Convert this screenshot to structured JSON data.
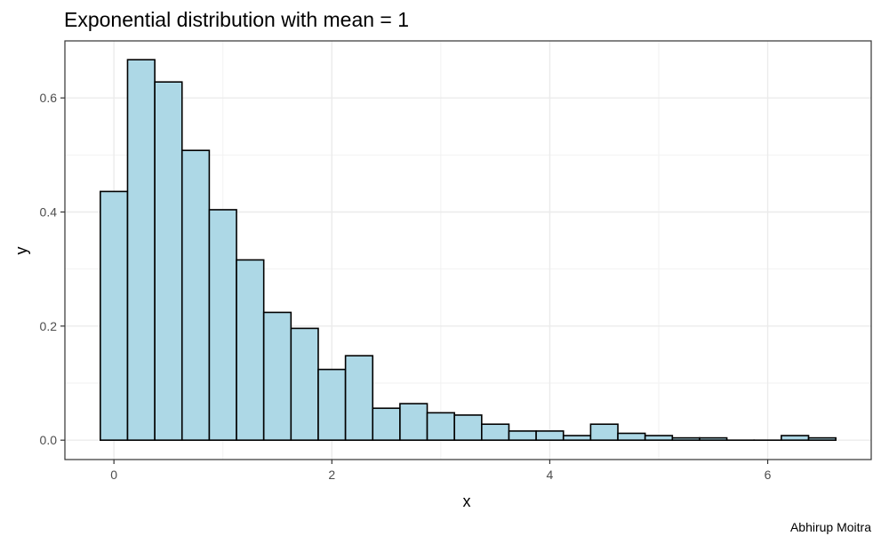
{
  "chart_data": {
    "type": "bar",
    "title": "Exponential distribution with mean = 1",
    "xlabel": "x",
    "ylabel": "y",
    "caption": "Abhirup Moitra",
    "bin_width": 0.25,
    "bin_centers": [
      0.0,
      0.25,
      0.5,
      0.75,
      1.0,
      1.25,
      1.5,
      1.75,
      2.0,
      2.25,
      2.5,
      2.75,
      3.0,
      3.25,
      3.5,
      3.75,
      4.0,
      4.25,
      4.5,
      4.75,
      5.0,
      5.25,
      5.5,
      5.75,
      6.0,
      6.25,
      6.5
    ],
    "values": [
      0.436,
      0.667,
      0.628,
      0.508,
      0.404,
      0.316,
      0.224,
      0.196,
      0.124,
      0.148,
      0.056,
      0.064,
      0.048,
      0.044,
      0.028,
      0.016,
      0.016,
      0.008,
      0.028,
      0.012,
      0.008,
      0.004,
      0.004,
      0.0,
      0.0,
      0.008,
      0.004
    ],
    "xlim": [
      -0.45,
      6.95
    ],
    "ylim": [
      -0.034,
      0.7
    ],
    "x_ticks": [
      0,
      2,
      4,
      6
    ],
    "x_tick_labels": [
      "0",
      "2",
      "4",
      "6"
    ],
    "y_ticks": [
      0.0,
      0.2,
      0.4,
      0.6
    ],
    "y_tick_labels": [
      "0.0",
      "0.2",
      "0.4",
      "0.6"
    ],
    "bar_fill": "#add8e6",
    "bar_stroke": "#000000",
    "grid": true,
    "theme": "bw"
  }
}
